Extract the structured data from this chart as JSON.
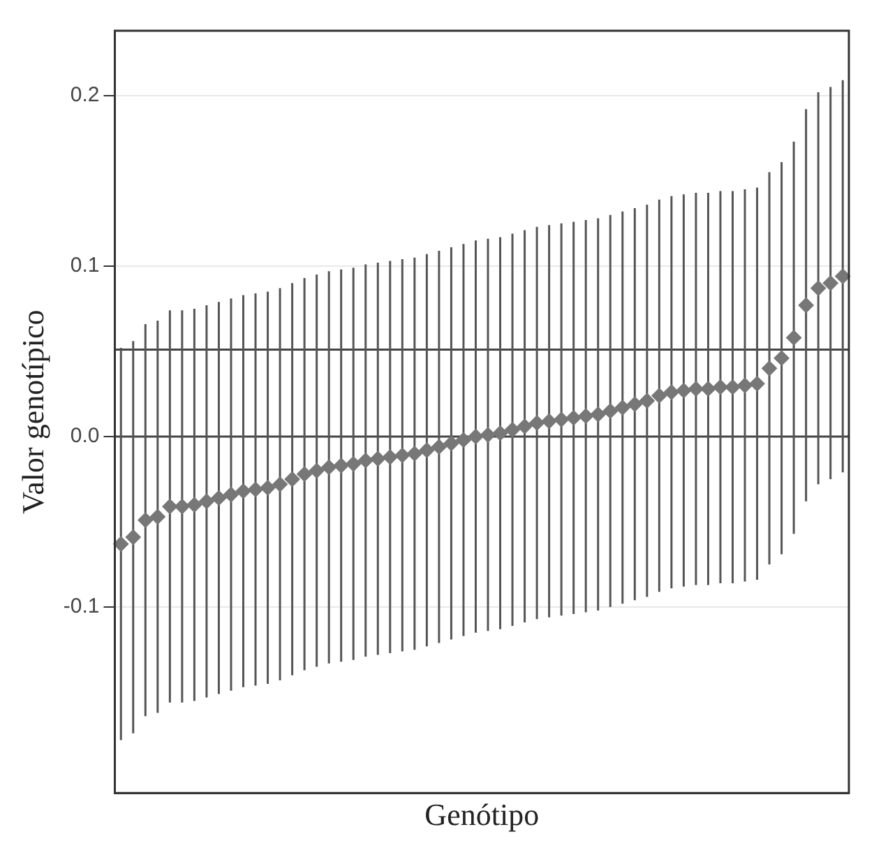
{
  "chart_data": {
    "type": "scatter",
    "xlabel": "Genótipo",
    "ylabel": "Valor genotípico",
    "categories": [
      null,
      null,
      null,
      null,
      null,
      null,
      null,
      null,
      null,
      null,
      null,
      null,
      null,
      null,
      null,
      null,
      null,
      null,
      null,
      null,
      null,
      null,
      null,
      null,
      null,
      null,
      null,
      null,
      null,
      null,
      null,
      null,
      null,
      null,
      null,
      null,
      null,
      null,
      null,
      null,
      null,
      null,
      null,
      null,
      null,
      null,
      null,
      null,
      null,
      null,
      null,
      null,
      null,
      null,
      null,
      null,
      null,
      null,
      null,
      null
    ],
    "series": [
      {
        "color": "#777777",
        "values": [
          -0.063,
          -0.059,
          -0.049,
          -0.047,
          -0.041,
          -0.041,
          -0.04,
          -0.038,
          -0.036,
          -0.034,
          -0.032,
          -0.031,
          -0.03,
          -0.028,
          -0.025,
          -0.022,
          -0.02,
          -0.018,
          -0.017,
          -0.016,
          -0.014,
          -0.013,
          -0.012,
          -0.011,
          -0.01,
          -0.008,
          -0.006,
          -0.004,
          -0.002,
          0.0,
          0.001,
          0.002,
          0.004,
          0.006,
          0.008,
          0.009,
          0.01,
          0.011,
          0.012,
          0.013,
          0.015,
          0.017,
          0.019,
          0.021,
          0.024,
          0.026,
          0.027,
          0.028,
          0.028,
          0.029,
          0.029,
          0.03,
          0.031,
          0.04,
          0.046,
          0.058,
          0.077,
          0.087,
          0.09,
          0.094
        ],
        "errors": [
          0.115,
          0.115,
          0.115,
          0.115,
          0.115,
          0.115,
          0.115,
          0.115,
          0.115,
          0.115,
          0.115,
          0.115,
          0.115,
          0.115,
          0.115,
          0.115,
          0.115,
          0.115,
          0.115,
          0.115,
          0.115,
          0.115,
          0.115,
          0.115,
          0.115,
          0.115,
          0.115,
          0.115,
          0.115,
          0.115,
          0.115,
          0.115,
          0.115,
          0.115,
          0.115,
          0.115,
          0.115,
          0.115,
          0.115,
          0.115,
          0.115,
          0.115,
          0.115,
          0.115,
          0.115,
          0.115,
          0.115,
          0.115,
          0.115,
          0.115,
          0.115,
          0.115,
          0.115,
          0.115,
          0.115,
          0.115,
          0.115,
          0.115,
          0.115,
          0.115
        ]
      }
    ],
    "ylim": [
      -0.209,
      0.238
    ],
    "yticks": [
      {
        "value": -0.1,
        "label": "-0.1"
      },
      {
        "value": 0,
        "label": "0.0"
      },
      {
        "value": 0.1,
        "label": "0.1"
      },
      {
        "value": 0.2,
        "label": "0.2"
      }
    ],
    "ref_lines": [
      {
        "axis": "y",
        "value": 0,
        "color": "#444444"
      },
      {
        "axis": "y",
        "value": 0.051,
        "color": "#444444"
      }
    ],
    "tick_labels": "y",
    "grid": "y",
    "marker": "diamond",
    "legend": false
  }
}
